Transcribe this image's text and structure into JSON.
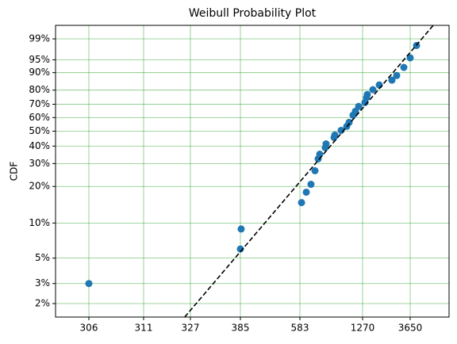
{
  "chart_data": {
    "type": "scatter",
    "title": "Weibull Probability Plot",
    "y_label": "CDF",
    "x_scale": "log",
    "y_scale": "weibull",
    "grid": true,
    "grid_color": "#2ca02c",
    "xlim": [
      303,
      8640
    ],
    "ylim": [
      1.52,
      99.77
    ],
    "xticks": [
      306,
      311,
      327,
      385,
      583,
      1270,
      3650
    ],
    "yticks": [
      {
        "value": 2,
        "label": "2%"
      },
      {
        "value": 3,
        "label": "3%"
      },
      {
        "value": 5,
        "label": "5%"
      },
      {
        "value": 10,
        "label": "10%"
      },
      {
        "value": 20,
        "label": "20%"
      },
      {
        "value": 30,
        "label": "30%"
      },
      {
        "value": 40,
        "label": "40%"
      },
      {
        "value": 50,
        "label": "50%"
      },
      {
        "value": 60,
        "label": "60%"
      },
      {
        "value": 70,
        "label": "70%"
      },
      {
        "value": 80,
        "label": "80%"
      },
      {
        "value": 90,
        "label": "90%"
      },
      {
        "value": 95,
        "label": "95%"
      },
      {
        "value": 99,
        "label": "99%"
      }
    ],
    "series": [
      {
        "color": "#1f77b4",
        "x": [
          306,
          385,
          387,
          595,
          631,
          669,
          703,
          731,
          746,
          799,
          807,
          891,
          900,
          973,
          1043,
          1074,
          1128,
          1162,
          1209,
          1339,
          1387,
          1411,
          1596,
          1838,
          2435,
          2707,
          3171,
          3650,
          4202
        ],
        "values": [
          3.0,
          6.0,
          8.9,
          14.8,
          18.0,
          20.8,
          26.5,
          32.5,
          35.1,
          39.0,
          41.4,
          45.6,
          47.3,
          50.6,
          53.5,
          56.4,
          61.8,
          64.8,
          68.4,
          71.3,
          74.8,
          77.0,
          80.3,
          83.3,
          86.1,
          88.6,
          92.3,
          95.6,
          98.2
        ]
      },
      {
        "color": "#000000",
        "line_style": "dashed",
        "x": [
          325,
          6080
        ],
        "values": [
          1.52,
          99.77
        ]
      }
    ]
  }
}
